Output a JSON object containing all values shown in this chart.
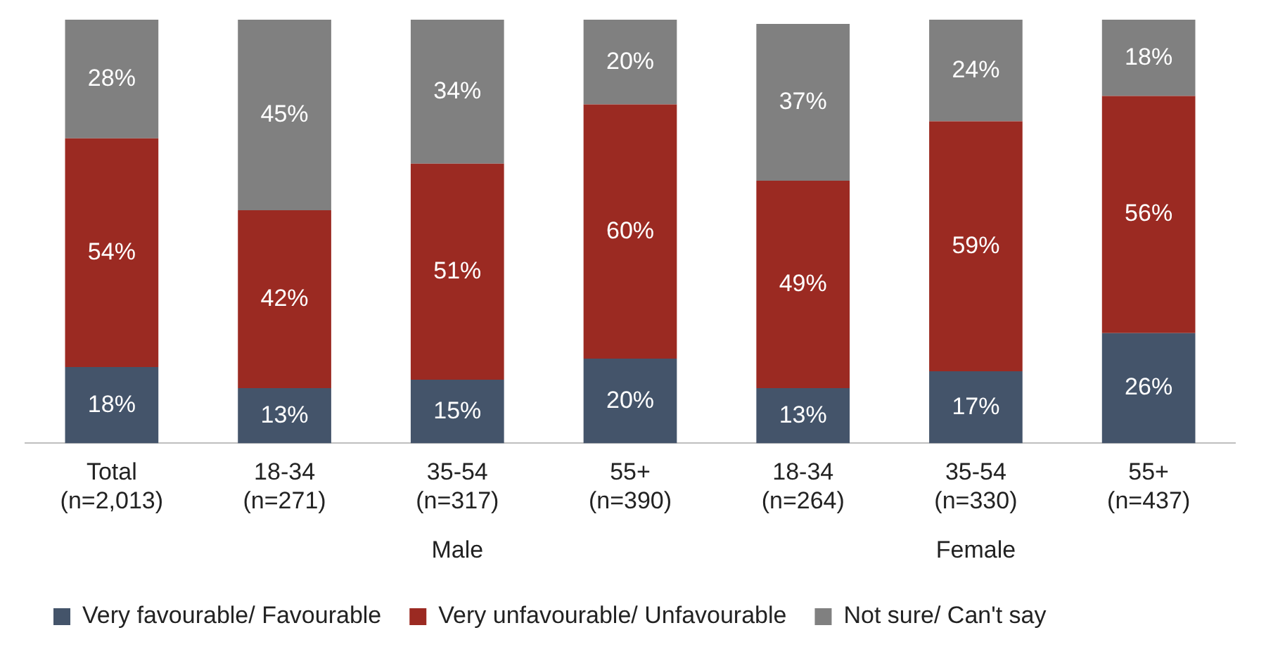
{
  "chart_data": {
    "type": "bar",
    "stacked": true,
    "legend": "bottom",
    "grid": false,
    "categories": [
      "Total\n(n=2,013)",
      "18-34\n(n=271)",
      "35-54\n(n=317)",
      "55+\n(n=390)",
      "18-34\n(n=264)",
      "35-54\n(n=330)",
      "55+\n(n=437)"
    ],
    "series": [
      {
        "name": "Very favourable/ Favourable",
        "color": "#44546a",
        "values": [
          18,
          13,
          15,
          20,
          13,
          17,
          26
        ],
        "value_labels": [
          "18%",
          "13%",
          "15%",
          "20%",
          "13%",
          "17%",
          "26%"
        ]
      },
      {
        "name": "Very unfavourable/ Unfavourable",
        "color": "#9b2a22",
        "values": [
          54,
          42,
          51,
          60,
          49,
          59,
          56
        ],
        "value_labels": [
          "54%",
          "42%",
          "51%",
          "60%",
          "49%",
          "59%",
          "56%"
        ]
      },
      {
        "name": "Not sure/ Can't say",
        "color": "#808080",
        "values": [
          28,
          45,
          34,
          20,
          37,
          24,
          18
        ],
        "value_labels": [
          "28%",
          "45%",
          "34%",
          "20%",
          "37%",
          "24%",
          "18%"
        ]
      }
    ],
    "annotations": [
      "Male",
      "Female"
    ]
  }
}
